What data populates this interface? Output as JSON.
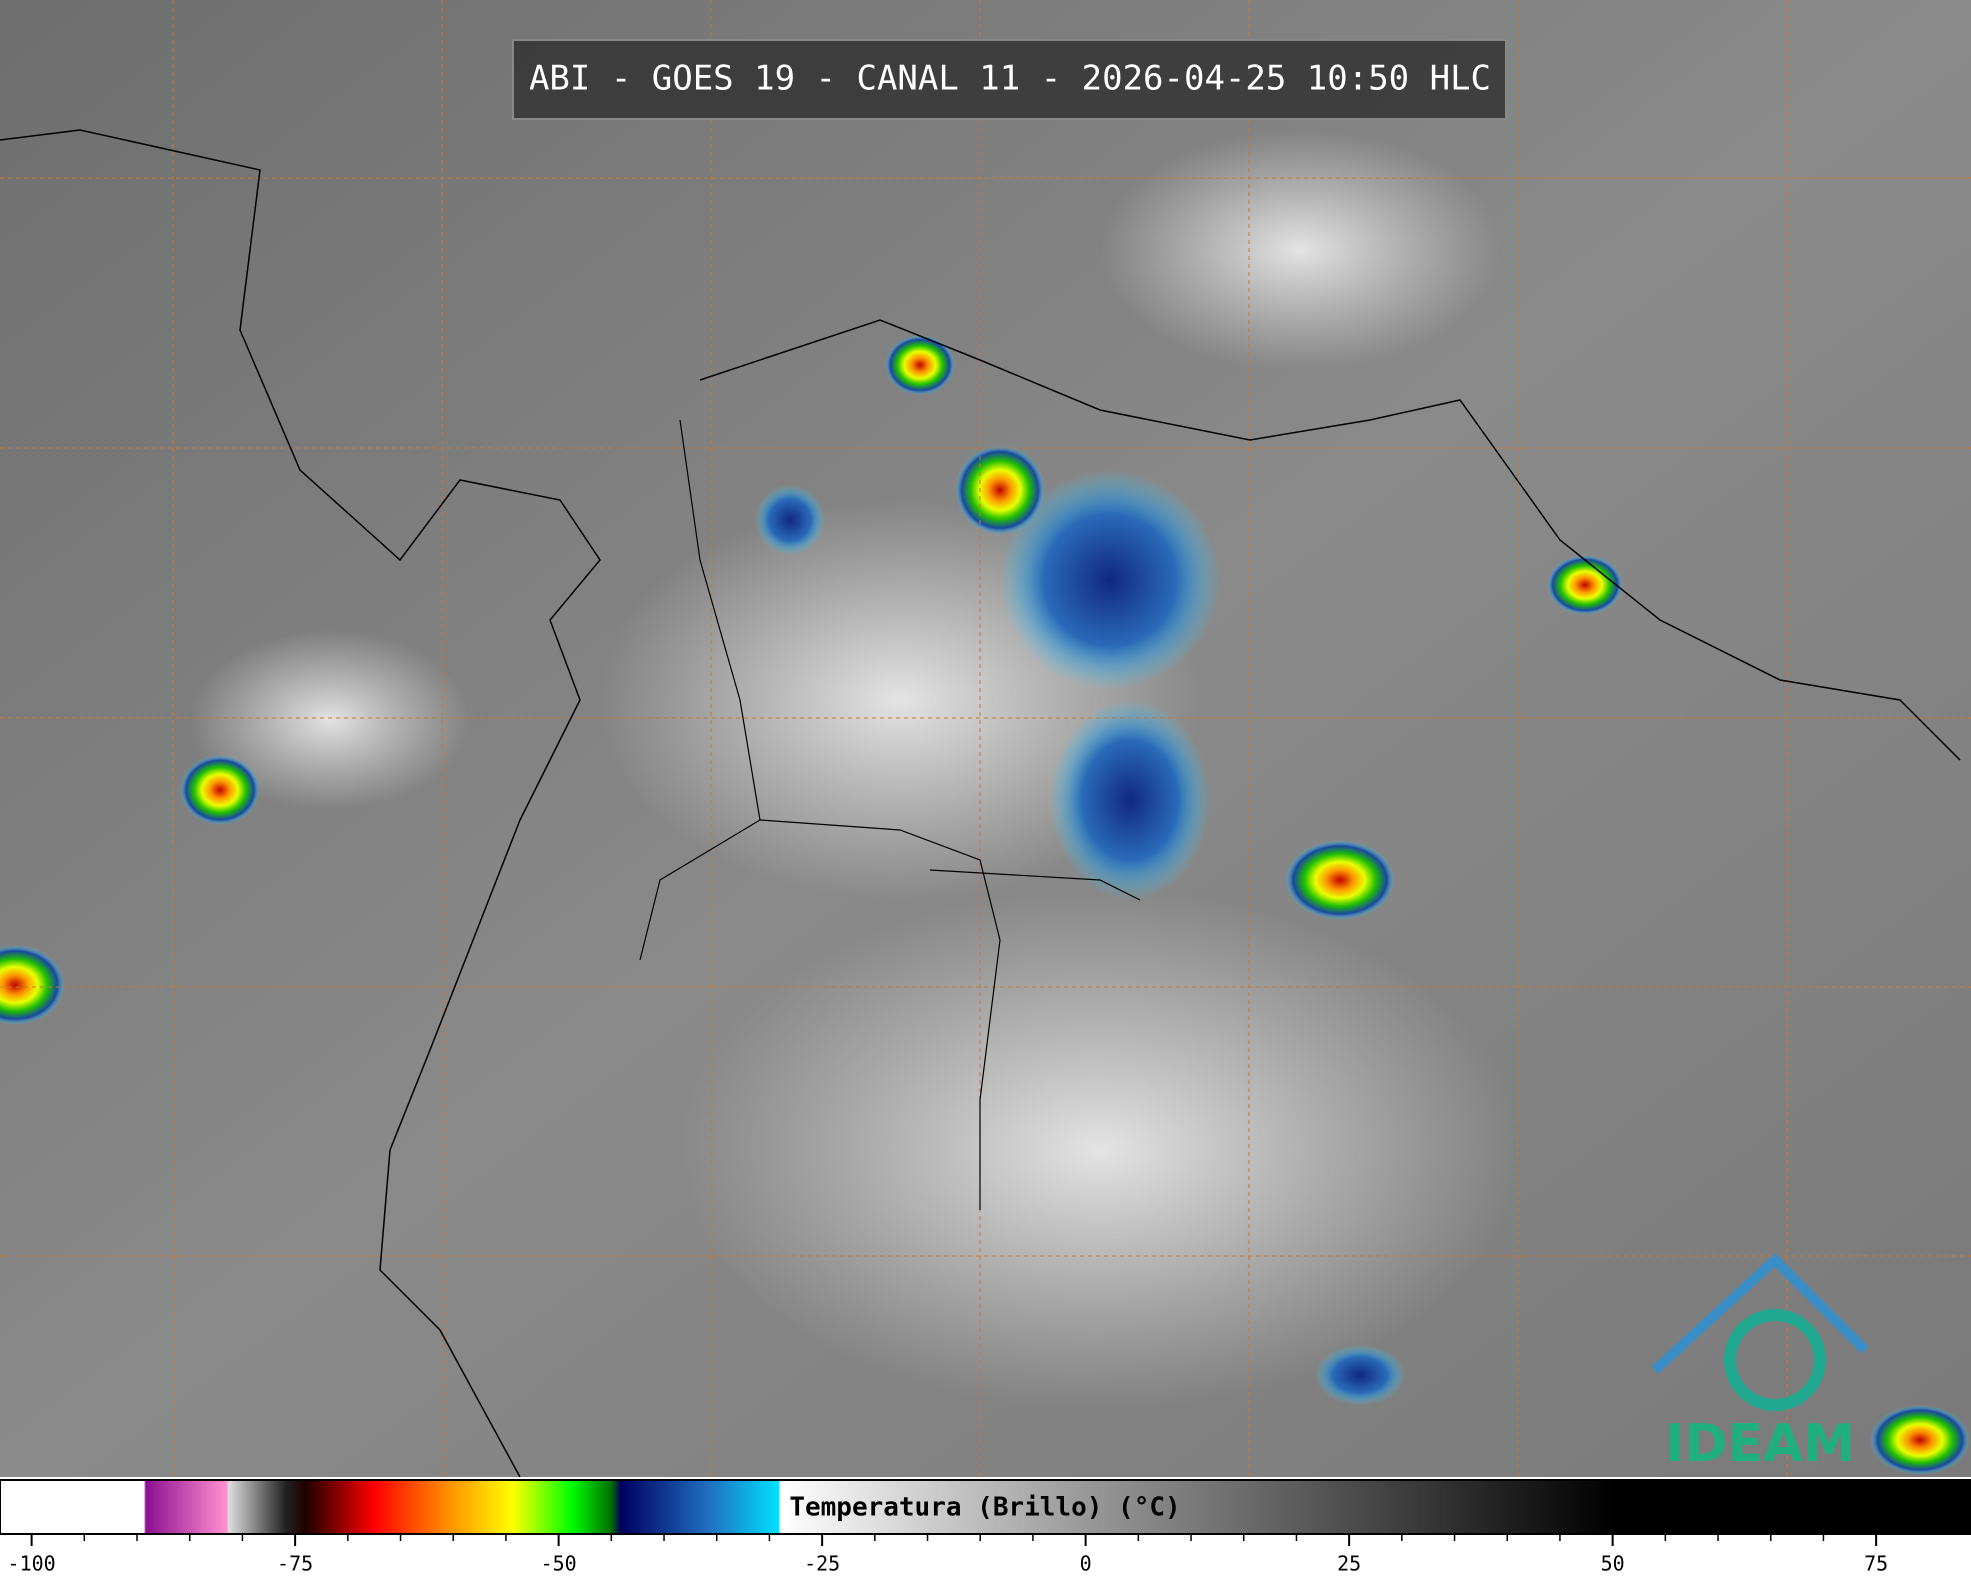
{
  "title": "ABI - GOES 19 - CANAL 11 - 2026-04-25 10:50 HLC",
  "logo": "IDEAM",
  "colorbar": {
    "label": "Temperatura (Brillo) (°C)",
    "range": [
      -103,
      84
    ],
    "ticks": [
      -100,
      -75,
      -50,
      -25,
      0,
      25,
      50,
      75
    ]
  }
}
